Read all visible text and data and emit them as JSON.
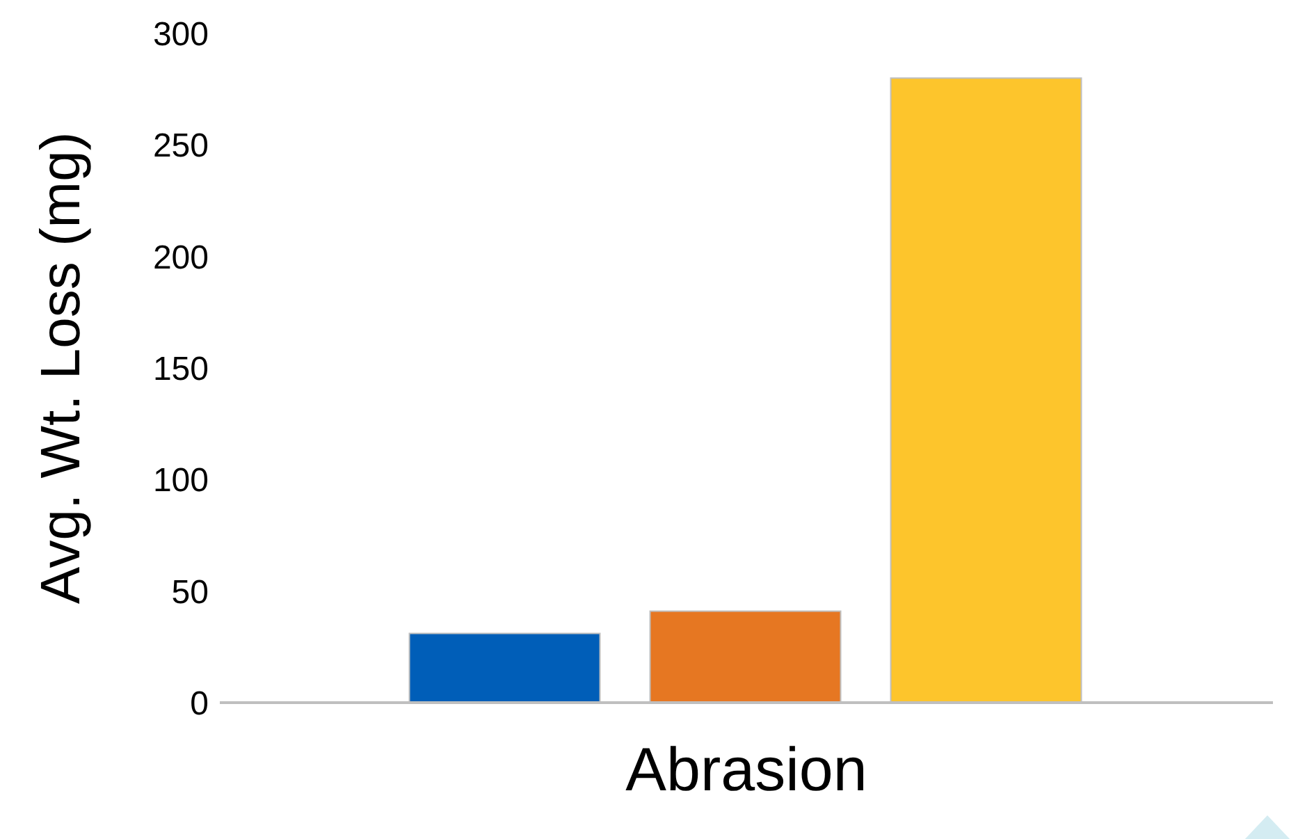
{
  "chart_data": {
    "type": "bar",
    "ylabel": "Avg. Wt. Loss (mg)",
    "categories": [
      "Abrasion"
    ],
    "series": [
      {
        "color": "#005eb8",
        "values": [
          31
        ]
      },
      {
        "color": "#e67722",
        "values": [
          41
        ]
      },
      {
        "color": "#fdc52c",
        "values": [
          280
        ]
      }
    ],
    "ylim": [
      0,
      300
    ],
    "yticks": [
      0,
      50,
      100,
      150,
      200,
      250,
      300
    ],
    "grid": false,
    "legend": false
  }
}
